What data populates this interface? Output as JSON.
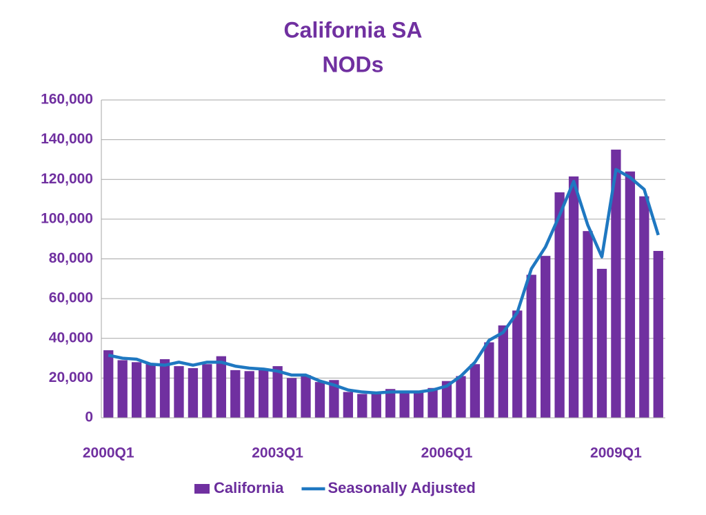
{
  "chart_data": {
    "type": "bar",
    "title": [
      "California SA",
      "NODs"
    ],
    "categories": [
      "2000Q1",
      null,
      null,
      null,
      null,
      null,
      null,
      null,
      null,
      null,
      null,
      null,
      "2003Q1",
      null,
      null,
      null,
      null,
      null,
      null,
      null,
      null,
      null,
      null,
      null,
      "2006Q1",
      null,
      null,
      null,
      null,
      null,
      null,
      null,
      null,
      null,
      null,
      null,
      "2009Q1",
      null,
      null,
      null
    ],
    "series": [
      {
        "name": "California",
        "type": "bar",
        "color": "#7030a0",
        "values": [
          34000,
          29000,
          28000,
          27000,
          29500,
          26000,
          25000,
          27000,
          31000,
          24000,
          23500,
          24000,
          26000,
          20000,
          21500,
          18000,
          19000,
          13000,
          12000,
          12500,
          14500,
          13000,
          13000,
          15000,
          18500,
          21000,
          27000,
          38000,
          46500,
          54000,
          72000,
          81500,
          113500,
          121500,
          94000,
          75000,
          135000,
          124000,
          111500,
          84000
        ]
      },
      {
        "name": "Seasonally Adjusted",
        "type": "line",
        "color": "#1f78c1",
        "values": [
          31500,
          30000,
          29500,
          27000,
          26500,
          28000,
          26500,
          28000,
          28000,
          26000,
          25000,
          24500,
          23500,
          21500,
          21500,
          18500,
          16500,
          14000,
          13000,
          12500,
          13000,
          13000,
          13000,
          14000,
          16000,
          21000,
          28000,
          39000,
          43000,
          53000,
          75000,
          86000,
          102000,
          119000,
          97000,
          81000,
          125000,
          121000,
          115000,
          92000
        ]
      }
    ],
    "ylim": [
      0,
      160000
    ],
    "yticks": [
      0,
      {
        "value": 20000,
        "label": "20,000"
      },
      {
        "value": 40000,
        "label": "40,000"
      },
      {
        "value": 60000,
        "label": "60,000"
      },
      {
        "value": 80000,
        "label": "80,000"
      },
      {
        "value": 100000,
        "label": "100,000"
      },
      {
        "value": 120000,
        "label": "120,000"
      },
      {
        "value": 140000,
        "label": "140,000"
      },
      {
        "value": 160000,
        "label": "160,000"
      }
    ],
    "grid": true,
    "legend": "bottom"
  }
}
